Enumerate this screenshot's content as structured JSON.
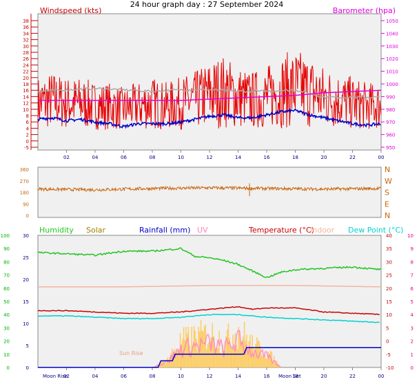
{
  "title": "24 hour graph day : 27 September 2024",
  "colors": {
    "wind": "#e60000",
    "baro": "#e000e0",
    "avg": "#0000c8",
    "dir": "#c8640a",
    "humidity": "#22c422",
    "solar": "#a08000",
    "rain": "#0000c8",
    "uv": "#ff80c0",
    "temp": "#c80000",
    "indoor": "#f4b4a0",
    "dew": "#00d0d0",
    "leftAxis": "#00b000",
    "rightAxis": "#e00080",
    "xtick": "#000080"
  },
  "xticks": [
    "02",
    "04",
    "06",
    "08",
    "10",
    "12",
    "14",
    "16",
    "18",
    "20",
    "22",
    "00"
  ],
  "chart_data": [
    {
      "type": "line",
      "name": "wind-barometer",
      "left_label": "Windspeed (kts)",
      "right_label": "Barometer (hpa)",
      "left_ticks": [
        "-5",
        "0",
        "2",
        "4",
        "6",
        "8",
        "10",
        "12",
        "14",
        "16",
        "18",
        "20",
        "22",
        "24",
        "26",
        "28",
        "30",
        "32",
        "34",
        "36",
        "38"
      ],
      "right_ticks": [
        "950",
        "960",
        "970",
        "980",
        "990",
        "1000",
        "1010",
        "1020",
        "1030",
        "1040",
        "1050"
      ],
      "x_range_hours": [
        0,
        24
      ],
      "series": [
        {
          "name": "Windspeed (kts)",
          "key": "gust",
          "x": [
            0,
            1,
            2,
            3,
            4,
            5,
            6,
            7,
            8,
            9,
            10,
            11,
            12,
            13,
            14,
            15,
            16,
            17,
            18,
            19,
            20,
            21,
            22,
            23,
            24
          ],
          "values": [
            10,
            11,
            10,
            10,
            9,
            9,
            8,
            9,
            10,
            9,
            10,
            11,
            13,
            14,
            12,
            11,
            12,
            14,
            15,
            14,
            12,
            11,
            10,
            9,
            9
          ]
        },
        {
          "name": "Barometer (hpa)",
          "key": "baro",
          "x": [
            0,
            2,
            4,
            6,
            8,
            10,
            12,
            14,
            16,
            18,
            20,
            22,
            24
          ],
          "values": [
            987,
            987,
            987,
            987,
            987,
            987,
            988,
            989,
            990,
            991,
            993,
            994,
            995
          ]
        },
        {
          "key": "avg",
          "x": [
            0,
            1,
            2,
            3,
            4,
            5,
            6,
            7,
            8,
            9,
            10,
            11,
            12,
            13,
            14,
            15,
            16,
            17,
            18,
            19,
            20,
            21,
            22,
            23,
            24
          ],
          "values": [
            4.5,
            5,
            4,
            4.5,
            3.5,
            3,
            2,
            3,
            3,
            3,
            3.5,
            4.5,
            5.5,
            6,
            5,
            5,
            6,
            7,
            7.5,
            6,
            5,
            4,
            3,
            2.5,
            3
          ]
        },
        {
          "key": "grey",
          "x": [
            0,
            2,
            4,
            6,
            8,
            10,
            12,
            14,
            16,
            18,
            20,
            22,
            24
          ],
          "values": [
            14,
            14.5,
            15,
            14.5,
            14,
            14.5,
            14.5,
            14,
            14,
            14.5,
            12,
            12,
            12
          ]
        }
      ]
    },
    {
      "type": "scatter",
      "name": "wind-direction",
      "left_ticks": [
        "0",
        "90",
        "180",
        "270",
        "360"
      ],
      "right_ticks": [
        "N",
        "E",
        "S",
        "W",
        "N"
      ],
      "series": [
        {
          "name": "Wind direction",
          "x": [
            0,
            4,
            8,
            12,
            16,
            20,
            24
          ],
          "values": [
            205,
            200,
            210,
            215,
            210,
            205,
            210
          ]
        }
      ]
    },
    {
      "type": "line",
      "name": "temperature-humidity",
      "series_labels": [
        "Humidity",
        "Solar",
        "Rainfall (mm)",
        "UV",
        "Temperature (°C)",
        "Indoor",
        "Dew Point (°C)"
      ],
      "left_ticks": [
        "0",
        "10",
        "20",
        "30",
        "40",
        "50",
        "60",
        "70",
        "80",
        "90",
        "100"
      ],
      "inner_left_ticks": [
        "0",
        "5",
        "10",
        "15",
        "20",
        "25",
        "30"
      ],
      "right_ticks": [
        "-10",
        "-5",
        "0",
        "5",
        "10",
        "15",
        "20",
        "25",
        "30",
        "35",
        "40"
      ],
      "far_right_ticks": [
        "0",
        "1",
        "2",
        "3",
        "4",
        "5",
        "6",
        "7",
        "8",
        "9",
        "10"
      ],
      "annotations": [
        "Moon Rise",
        "Sun Rise",
        "Moon Set"
      ],
      "series": [
        {
          "name": "Humidity",
          "key": "hum",
          "x": [
            0,
            2,
            4,
            6,
            8,
            10,
            11,
            12,
            13,
            14,
            15,
            16,
            17,
            18,
            20,
            22,
            24
          ],
          "values": [
            87,
            86,
            85,
            88,
            88,
            90,
            84,
            83,
            81,
            78,
            73,
            68,
            72,
            74,
            75,
            76,
            74
          ]
        },
        {
          "name": "Temperature (°C)",
          "key": "temp",
          "x": [
            0,
            2,
            4,
            6,
            8,
            10,
            12,
            14,
            15,
            16,
            18,
            20,
            22,
            24
          ],
          "values": [
            11.5,
            11.5,
            11,
            10.5,
            10.5,
            11,
            12,
            13,
            12,
            12.5,
            12.5,
            11,
            10.5,
            10
          ]
        },
        {
          "name": "Dew Point (°C)",
          "key": "dew",
          "x": [
            0,
            2,
            4,
            6,
            8,
            10,
            12,
            14,
            16,
            18,
            20,
            22,
            24
          ],
          "values": [
            9.5,
            9.5,
            9,
            8.5,
            8.5,
            9,
            10,
            10,
            9,
            8.5,
            8,
            7.5,
            7
          ]
        },
        {
          "name": "Indoor",
          "key": "indoor",
          "x": [
            0,
            6,
            12,
            18,
            24
          ],
          "values": [
            20.5,
            20.5,
            21,
            21,
            20.5
          ]
        },
        {
          "name": "Rainfall (mm)",
          "key": "rain",
          "x": [
            0,
            8.4,
            8.6,
            9.4,
            9.6,
            14.4,
            14.6,
            22,
            24
          ],
          "values": [
            0,
            0,
            1.5,
            1.5,
            3,
            3,
            4.5,
            4.5,
            4.5
          ]
        },
        {
          "name": "Solar",
          "key": "solar",
          "x": [
            8,
            9,
            10,
            11,
            12,
            13,
            14,
            15,
            16,
            17
          ],
          "values": [
            0,
            2,
            7,
            8,
            9,
            7,
            10,
            6,
            4,
            0
          ]
        }
      ]
    }
  ]
}
